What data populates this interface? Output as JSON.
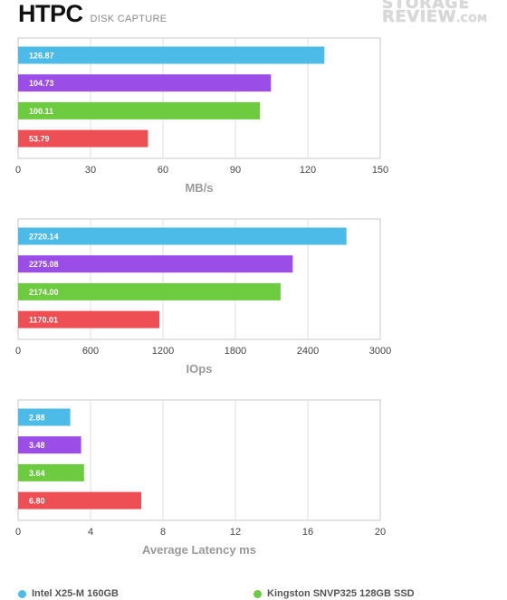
{
  "header": {
    "title": "HTPC",
    "subtitle": "DISK CAPTURE"
  },
  "watermark": {
    "line1": "STORAGE",
    "line2": "REVIEW",
    "suffix": ".COM"
  },
  "colors": {
    "series1": "#4cbbe8",
    "series2": "#9b4de8",
    "series3": "#6ccb3f",
    "series4": "#ee4f55"
  },
  "chart_data": [
    {
      "type": "bar",
      "orientation": "horizontal",
      "xlabel": "MB/s",
      "xlim": [
        0,
        150
      ],
      "ticks": [
        "0",
        "30",
        "60",
        "90",
        "120",
        "150"
      ],
      "values": [
        126.87,
        104.73,
        100.11,
        53.79
      ],
      "labels": [
        "126.87",
        "104.73",
        "100.11",
        "53.79"
      ],
      "grid": true
    },
    {
      "type": "bar",
      "orientation": "horizontal",
      "xlabel": "IOps",
      "xlim": [
        0,
        3000
      ],
      "ticks": [
        "0",
        "600",
        "1200",
        "1800",
        "2400",
        "3000"
      ],
      "values": [
        2720.14,
        2275.08,
        2174.0,
        1170.01
      ],
      "labels": [
        "2720.14",
        "2275.08",
        "2174.00",
        "1170.01"
      ],
      "grid": true
    },
    {
      "type": "bar",
      "orientation": "horizontal",
      "xlabel": "Average Latency ms",
      "xlim": [
        0,
        20
      ],
      "ticks": [
        "0",
        "4",
        "8",
        "12",
        "16",
        "20"
      ],
      "values": [
        2.88,
        3.48,
        3.64,
        6.8
      ],
      "labels": [
        "2.88",
        "3.48",
        "3.64",
        "6.80"
      ],
      "grid": true
    }
  ],
  "legend": [
    {
      "name": "Intel X25-M 160GB",
      "color": "#4cbbe8"
    },
    {
      "name": "Kingston SNVP325 128GB SSD",
      "color": "#6ccb3f"
    }
  ]
}
